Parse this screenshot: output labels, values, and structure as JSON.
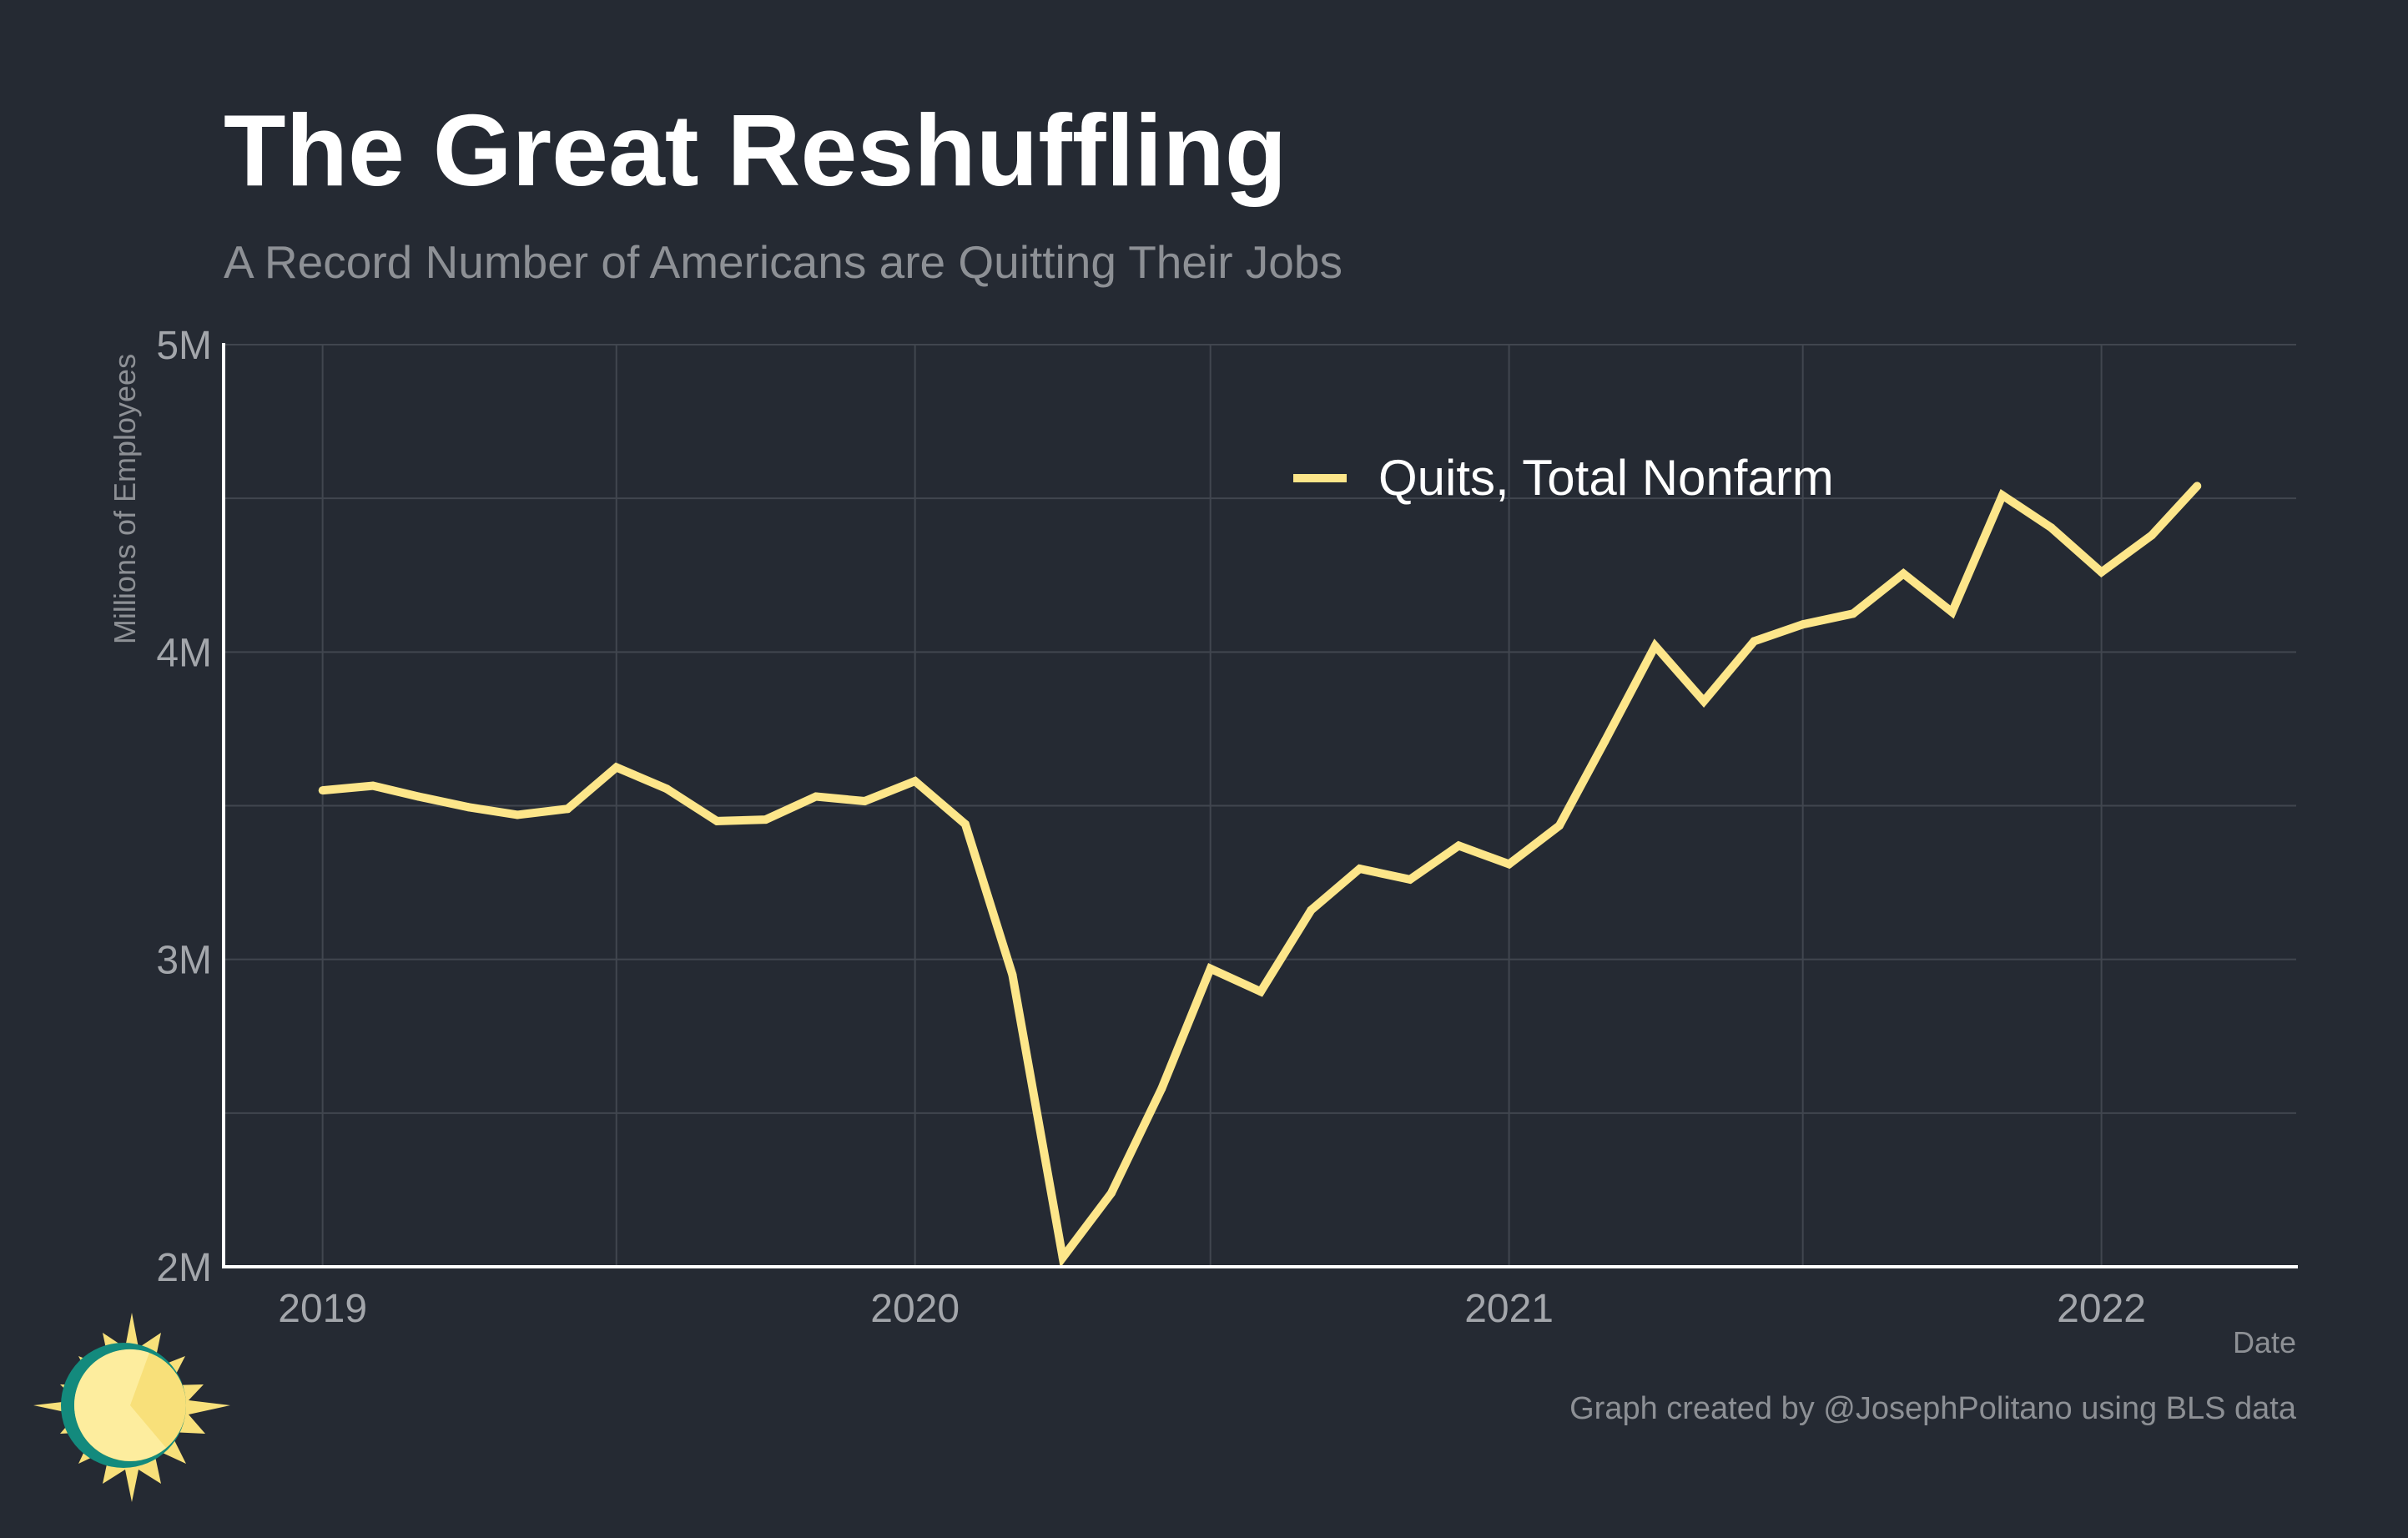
{
  "colors": {
    "background": "#252a33",
    "line": "#fde68a",
    "grid": "#41464f",
    "axis": "#ffffff",
    "title": "#ffffff",
    "muted": "#8d9095",
    "logo_sun": "#f8e07a",
    "logo_ring": "#138a7d"
  },
  "icons": {
    "logo": "sun-clock-logo-icon"
  },
  "chart_data": {
    "type": "line",
    "title": "The Great Reshuffling",
    "subtitle": "A Record Number of Americans are Quitting Their Jobs",
    "xlabel": "Date",
    "ylabel": "Millions of Employees",
    "caption": "Graph created by @JosephPolitano using BLS data",
    "xlim": [
      "2018-11-01",
      "2022-05-01"
    ],
    "ylim": [
      2000000,
      5000000
    ],
    "x_ticks": [
      {
        "date": "2019-01-01",
        "label": "2019"
      },
      {
        "date": "2020-01-01",
        "label": "2020"
      },
      {
        "date": "2021-01-01",
        "label": "2021"
      },
      {
        "date": "2022-01-01",
        "label": "2022"
      }
    ],
    "x_minor_ticks": [
      "2019-07-01",
      "2020-07-01",
      "2021-07-01"
    ],
    "y_ticks": [
      {
        "value": 2000000,
        "label": "2M"
      },
      {
        "value": 3000000,
        "label": "3M"
      },
      {
        "value": 4000000,
        "label": "4M"
      },
      {
        "value": 5000000,
        "label": "5M"
      }
    ],
    "y_minor_ticks": [
      2500000,
      3500000,
      4500000
    ],
    "grid": true,
    "legend_position": "top-right",
    "series": [
      {
        "name": "Quits, Total Nonfarm",
        "color": "#fde68a",
        "points": [
          [
            "2019-01-01",
            3550000
          ],
          [
            "2019-02-01",
            3565000
          ],
          [
            "2019-03-01",
            3530000
          ],
          [
            "2019-04-01",
            3495000
          ],
          [
            "2019-05-01",
            3470000
          ],
          [
            "2019-06-01",
            3490000
          ],
          [
            "2019-07-01",
            3625000
          ],
          [
            "2019-08-01",
            3555000
          ],
          [
            "2019-09-01",
            3450000
          ],
          [
            "2019-10-01",
            3455000
          ],
          [
            "2019-11-01",
            3530000
          ],
          [
            "2019-12-01",
            3515000
          ],
          [
            "2020-01-01",
            3580000
          ],
          [
            "2020-02-01",
            3440000
          ],
          [
            "2020-03-01",
            2950000
          ],
          [
            "2020-04-01",
            2030000
          ],
          [
            "2020-05-01",
            2240000
          ],
          [
            "2020-06-01",
            2580000
          ],
          [
            "2020-07-01",
            2970000
          ],
          [
            "2020-08-01",
            2895000
          ],
          [
            "2020-09-01",
            3160000
          ],
          [
            "2020-10-01",
            3295000
          ],
          [
            "2020-11-01",
            3260000
          ],
          [
            "2020-12-01",
            3370000
          ],
          [
            "2021-01-01",
            3310000
          ],
          [
            "2021-02-01",
            3435000
          ],
          [
            "2021-03-01",
            3710000
          ],
          [
            "2021-04-01",
            4020000
          ],
          [
            "2021-05-01",
            3840000
          ],
          [
            "2021-06-01",
            4035000
          ],
          [
            "2021-07-01",
            4090000
          ],
          [
            "2021-08-01",
            4125000
          ],
          [
            "2021-09-01",
            4255000
          ],
          [
            "2021-10-01",
            4130000
          ],
          [
            "2021-11-01",
            4510000
          ],
          [
            "2021-12-01",
            4405000
          ],
          [
            "2022-01-01",
            4260000
          ],
          [
            "2022-02-01",
            4380000
          ],
          [
            "2022-03-01",
            4540000
          ]
        ]
      }
    ]
  }
}
